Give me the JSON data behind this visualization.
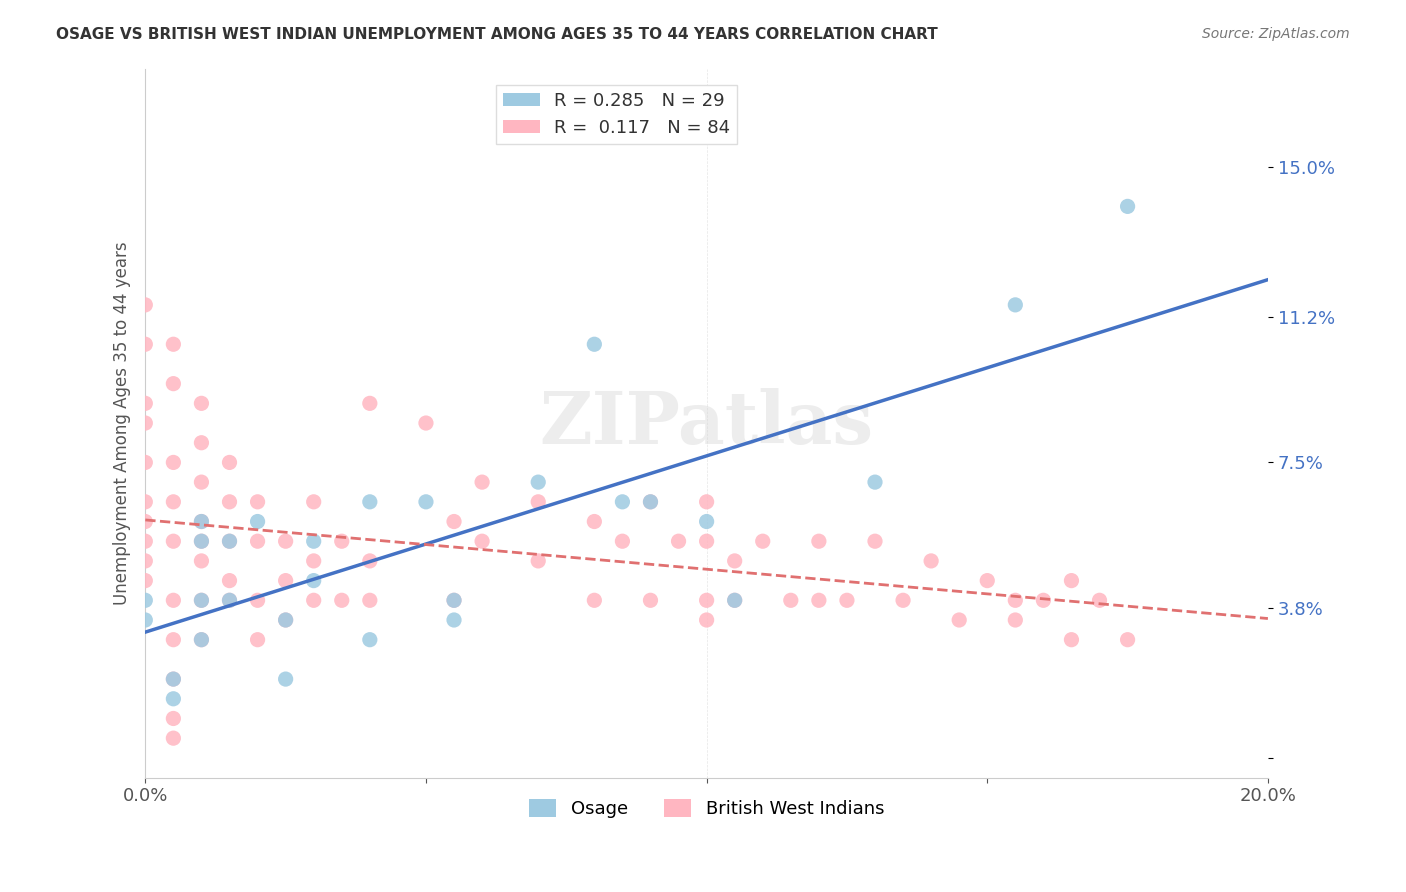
{
  "title": "OSAGE VS BRITISH WEST INDIAN UNEMPLOYMENT AMONG AGES 35 TO 44 YEARS CORRELATION CHART",
  "source": "Source: ZipAtlas.com",
  "ylabel": "Unemployment Among Ages 35 to 44 years",
  "xlabel": "",
  "xlim": [
    0.0,
    0.2
  ],
  "ylim": [
    -0.005,
    0.175
  ],
  "yticks": [
    0.0,
    0.038,
    0.075,
    0.112,
    0.15
  ],
  "ytick_labels": [
    "",
    "3.8%",
    "7.5%",
    "11.2%",
    "15.0%"
  ],
  "xticks": [
    0.0,
    0.05,
    0.1,
    0.15,
    0.2
  ],
  "xtick_labels": [
    "0.0%",
    "",
    "",
    "",
    "20.0%"
  ],
  "osage_R": 0.285,
  "osage_N": 29,
  "bwi_R": 0.117,
  "bwi_N": 84,
  "osage_color": "#9ecae1",
  "bwi_color": "#ffb6c1",
  "osage_line_color": "#4472c4",
  "bwi_line_color": "#e07070",
  "watermark": "ZIPatlas",
  "osage_x": [
    0.0,
    0.0,
    0.005,
    0.005,
    0.01,
    0.01,
    0.01,
    0.01,
    0.015,
    0.015,
    0.02,
    0.025,
    0.025,
    0.03,
    0.03,
    0.04,
    0.04,
    0.05,
    0.055,
    0.055,
    0.07,
    0.08,
    0.085,
    0.09,
    0.1,
    0.105,
    0.13,
    0.155,
    0.175
  ],
  "osage_y": [
    0.04,
    0.035,
    0.02,
    0.015,
    0.06,
    0.055,
    0.04,
    0.03,
    0.055,
    0.04,
    0.06,
    0.035,
    0.02,
    0.055,
    0.045,
    0.065,
    0.03,
    0.065,
    0.04,
    0.035,
    0.07,
    0.105,
    0.065,
    0.065,
    0.06,
    0.04,
    0.07,
    0.115,
    0.14
  ],
  "bwi_x": [
    0.0,
    0.0,
    0.0,
    0.0,
    0.0,
    0.0,
    0.0,
    0.0,
    0.0,
    0.0,
    0.005,
    0.005,
    0.005,
    0.005,
    0.005,
    0.005,
    0.005,
    0.005,
    0.005,
    0.005,
    0.01,
    0.01,
    0.01,
    0.01,
    0.01,
    0.01,
    0.01,
    0.01,
    0.015,
    0.015,
    0.015,
    0.015,
    0.015,
    0.02,
    0.02,
    0.02,
    0.02,
    0.025,
    0.025,
    0.025,
    0.03,
    0.03,
    0.03,
    0.035,
    0.035,
    0.04,
    0.04,
    0.04,
    0.05,
    0.055,
    0.055,
    0.06,
    0.06,
    0.07,
    0.07,
    0.08,
    0.08,
    0.085,
    0.09,
    0.09,
    0.095,
    0.1,
    0.1,
    0.1,
    0.1,
    0.105,
    0.105,
    0.11,
    0.115,
    0.12,
    0.12,
    0.125,
    0.13,
    0.135,
    0.14,
    0.145,
    0.15,
    0.155,
    0.155,
    0.16,
    0.165,
    0.165,
    0.17,
    0.175
  ],
  "bwi_y": [
    0.115,
    0.105,
    0.09,
    0.085,
    0.075,
    0.065,
    0.06,
    0.055,
    0.05,
    0.045,
    0.105,
    0.095,
    0.075,
    0.065,
    0.055,
    0.04,
    0.03,
    0.02,
    0.01,
    0.005,
    0.09,
    0.08,
    0.07,
    0.06,
    0.055,
    0.05,
    0.04,
    0.03,
    0.075,
    0.065,
    0.055,
    0.045,
    0.04,
    0.065,
    0.055,
    0.04,
    0.03,
    0.055,
    0.045,
    0.035,
    0.065,
    0.05,
    0.04,
    0.055,
    0.04,
    0.09,
    0.05,
    0.04,
    0.085,
    0.06,
    0.04,
    0.07,
    0.055,
    0.065,
    0.05,
    0.06,
    0.04,
    0.055,
    0.065,
    0.04,
    0.055,
    0.065,
    0.055,
    0.04,
    0.035,
    0.05,
    0.04,
    0.055,
    0.04,
    0.055,
    0.04,
    0.04,
    0.055,
    0.04,
    0.05,
    0.035,
    0.045,
    0.04,
    0.035,
    0.04,
    0.045,
    0.03,
    0.04,
    0.03
  ]
}
